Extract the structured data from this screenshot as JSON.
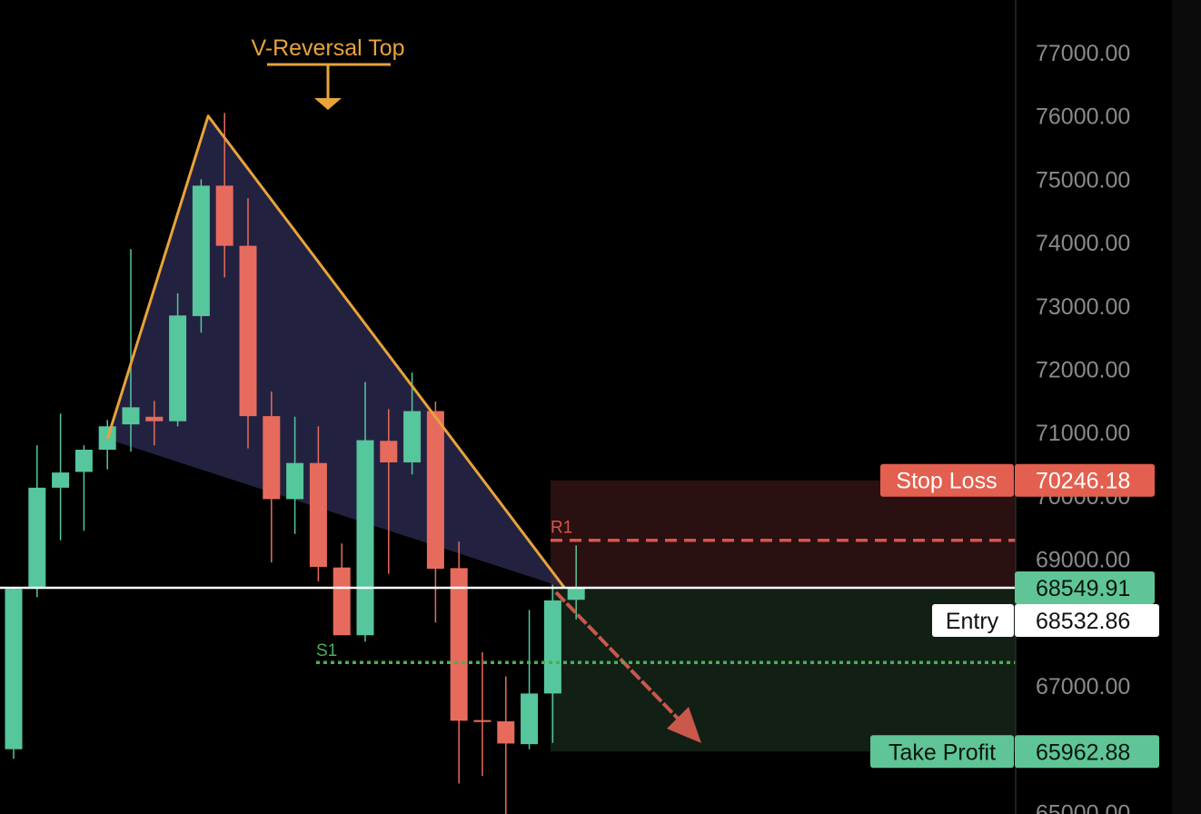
{
  "chart_data": {
    "type": "candlestick",
    "y_ticks": [
      65000,
      67000,
      69000,
      70000,
      71000,
      72000,
      73000,
      74000,
      75000,
      76000,
      77000
    ],
    "ylim": [
      64850,
      77850
    ],
    "grid": false,
    "candles": [
      {
        "o": 66000,
        "h": 68550,
        "l": 65850,
        "c": 68530
      },
      {
        "o": 68550,
        "h": 70800,
        "l": 68400,
        "c": 70130
      },
      {
        "o": 70130,
        "h": 71300,
        "l": 69300,
        "c": 70370
      },
      {
        "o": 70380,
        "h": 70800,
        "l": 69450,
        "c": 70730
      },
      {
        "o": 70730,
        "h": 71200,
        "l": 70420,
        "c": 71100
      },
      {
        "o": 71130,
        "h": 73900,
        "l": 70700,
        "c": 71400
      },
      {
        "o": 71250,
        "h": 71500,
        "l": 70800,
        "c": 71180
      },
      {
        "o": 71180,
        "h": 73200,
        "l": 71100,
        "c": 72850
      },
      {
        "o": 72840,
        "h": 75000,
        "l": 72580,
        "c": 74900
      },
      {
        "o": 74900,
        "h": 76050,
        "l": 73450,
        "c": 73950
      },
      {
        "o": 73950,
        "h": 74700,
        "l": 70750,
        "c": 71260
      },
      {
        "o": 71260,
        "h": 71650,
        "l": 68950,
        "c": 69950
      },
      {
        "o": 69950,
        "h": 71250,
        "l": 69400,
        "c": 70520
      },
      {
        "o": 70520,
        "h": 71100,
        "l": 68650,
        "c": 68880
      },
      {
        "o": 68870,
        "h": 69250,
        "l": 67850,
        "c": 67800
      },
      {
        "o": 67800,
        "h": 71800,
        "l": 67700,
        "c": 70880
      },
      {
        "o": 70870,
        "h": 71370,
        "l": 68770,
        "c": 70530
      },
      {
        "o": 70530,
        "h": 71950,
        "l": 70340,
        "c": 71340
      },
      {
        "o": 71340,
        "h": 71490,
        "l": 68000,
        "c": 68850
      },
      {
        "o": 68860,
        "h": 69280,
        "l": 65460,
        "c": 66450
      },
      {
        "o": 66460,
        "h": 67530,
        "l": 65580,
        "c": 66430
      },
      {
        "o": 66440,
        "h": 67150,
        "l": 64970,
        "c": 66090
      },
      {
        "o": 66080,
        "h": 68200,
        "l": 66000,
        "c": 66880
      },
      {
        "o": 66880,
        "h": 68600,
        "l": 66100,
        "c": 68350
      },
      {
        "o": 68360,
        "h": 69220,
        "l": 68050,
        "c": 68550
      }
    ],
    "annotation": "V-Reversal Top",
    "levels": {
      "r1": {
        "label": "R1",
        "value": 69300
      },
      "s1": {
        "label": "S1",
        "value": 67370
      },
      "last_price": 68549.91
    },
    "position": {
      "stop_loss": {
        "label": "Stop Loss",
        "value": "70246.18",
        "num": 70246.18
      },
      "entry": {
        "label": "Entry",
        "value": "68532.86",
        "num": 68532.86
      },
      "take_profit": {
        "label": "Take Profit",
        "value": "65962.88",
        "num": 65962.88
      },
      "current": {
        "value": "68549.91",
        "num": 68549.91
      }
    },
    "pattern": {
      "left": {
        "candle": 4,
        "price": 70900
      },
      "top": {
        "candle": 8.3,
        "price": 76000
      },
      "end": {
        "candle": 23.5,
        "price": 68550
      }
    },
    "colors": {
      "up": "#56c69c",
      "down": "#e76b5c",
      "accent": "#e8a33a",
      "stop_loss": "#e35f4f",
      "take_profit": "#5fc596",
      "risk_zone": "#2a1011",
      "reward_zone": "#111f15",
      "triangle": "#2c2b52",
      "arrow": "#c9574c",
      "r1": "#d8554a",
      "s1": "#4cae55"
    }
  }
}
